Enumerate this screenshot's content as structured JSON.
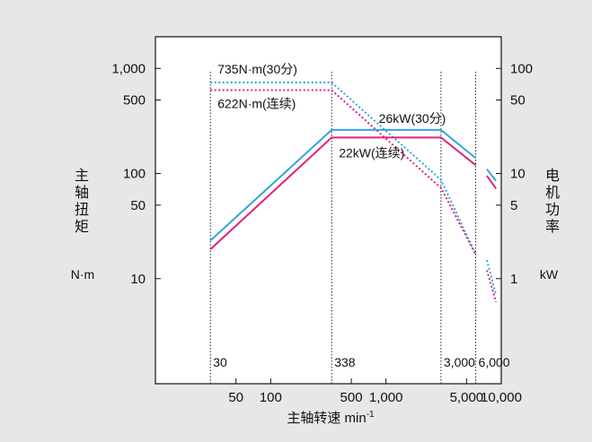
{
  "chart_data": {
    "type": "line",
    "xlabel": "主轴转速 min",
    "xlabel_sup": "-1",
    "ylabel_left": "主轴扭矩",
    "ylabel_left_unit": "N·m",
    "ylabel_right": "电机功率",
    "ylabel_right_unit": "kW",
    "x_scale": "log",
    "xlim": [
      10,
      10000
    ],
    "y_scale": "log",
    "ylim": [
      1,
      2000
    ],
    "y2lim": [
      0.1,
      200
    ],
    "x_ticks": [
      {
        "value": 50,
        "label": "50"
      },
      {
        "value": 100,
        "label": "100"
      },
      {
        "value": 500,
        "label": "500"
      },
      {
        "value": 1000,
        "label": "1,000"
      },
      {
        "value": 5000,
        "label": "5,000"
      },
      {
        "value": 10000,
        "label": "10,000"
      }
    ],
    "y_ticks_left": [
      {
        "value": 10,
        "label": "10"
      },
      {
        "value": 50,
        "label": "50"
      },
      {
        "value": 100,
        "label": "100"
      },
      {
        "value": 500,
        "label": "500"
      },
      {
        "value": 1000,
        "label": "1,000"
      }
    ],
    "y_ticks_right": [
      {
        "value": 1,
        "label": "1"
      },
      {
        "value": 5,
        "label": "5"
      },
      {
        "value": 10,
        "label": "10"
      },
      {
        "value": 50,
        "label": "50"
      },
      {
        "value": 100,
        "label": "100"
      }
    ],
    "speed_markers": [
      {
        "value": 30,
        "label": "30"
      },
      {
        "value": 338,
        "label": "338"
      },
      {
        "value": 3000,
        "label": "3,000"
      },
      {
        "value": 6000,
        "label": "6,000"
      }
    ],
    "grid": false,
    "series": [
      {
        "name": "735N·m(30分)",
        "kind": "torque",
        "color": "#2fa6e0",
        "style": "dashed",
        "points": [
          [
            30,
            735
          ],
          [
            338,
            735
          ],
          [
            3000,
            87
          ],
          [
            6000,
            17
          ]
        ]
      },
      {
        "name": "622N·m(连续)",
        "kind": "torque",
        "color": "#e0227a",
        "style": "dashed",
        "points": [
          [
            30,
            622
          ],
          [
            338,
            622
          ],
          [
            3000,
            73
          ],
          [
            6000,
            17
          ]
        ]
      },
      {
        "name": "26kW(30分)",
        "kind": "power",
        "color": "#2fa6e0",
        "style": "solid",
        "segments": [
          [
            [
              30,
              2.3
            ],
            [
              338,
              26
            ],
            [
              3000,
              26
            ],
            [
              6000,
              14
            ]
          ],
          [
            [
              7500,
              11
            ],
            [
              9000,
              8.5
            ]
          ]
        ]
      },
      {
        "name": "22kW(连续)",
        "kind": "power",
        "color": "#e0227a",
        "style": "solid",
        "segments": [
          [
            [
              30,
              1.9
            ],
            [
              338,
              22
            ],
            [
              3000,
              22
            ],
            [
              6000,
              12
            ]
          ],
          [
            [
              7500,
              9.5
            ],
            [
              9000,
              7.2
            ]
          ]
        ]
      }
    ],
    "tail_dashes": [
      {
        "color": "#2fa6e0",
        "points": [
          [
            7500,
            15
          ],
          [
            9000,
            7
          ]
        ]
      },
      {
        "color": "#e0227a",
        "points": [
          [
            7500,
            12
          ],
          [
            9000,
            6
          ]
        ]
      }
    ]
  }
}
